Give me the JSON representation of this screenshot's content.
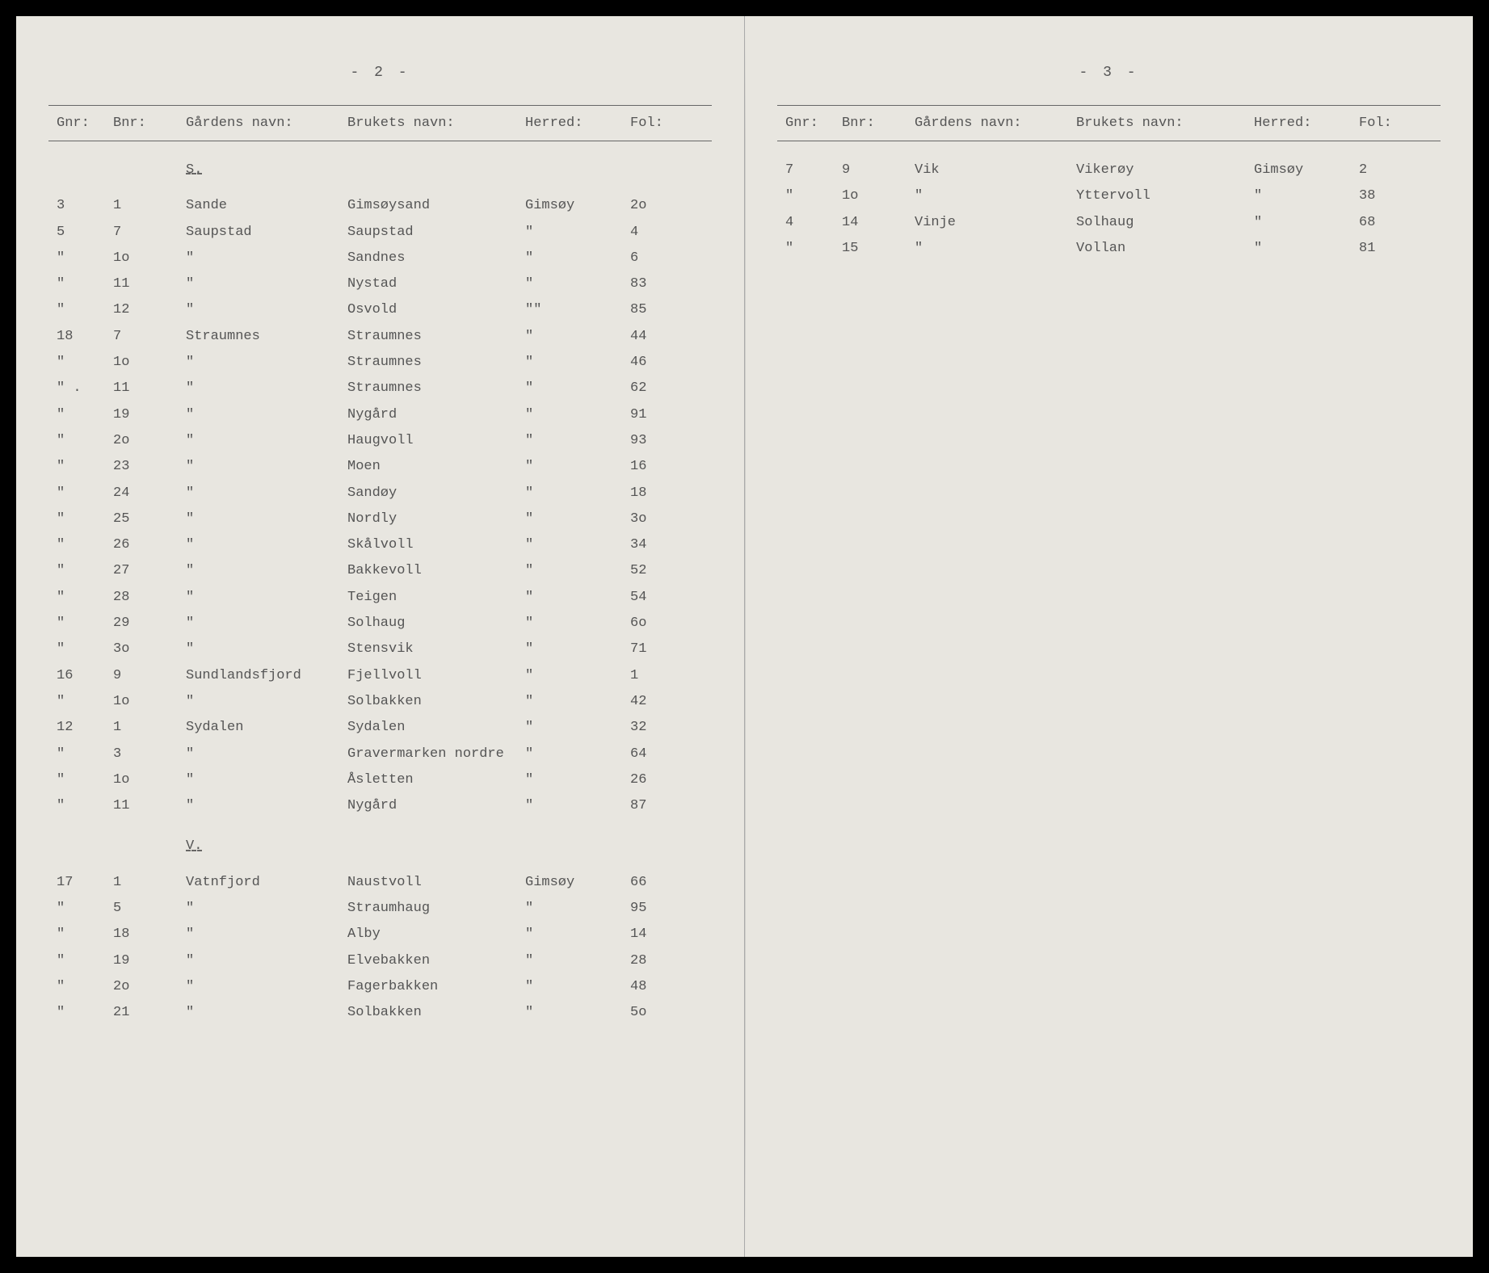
{
  "pages": {
    "left": {
      "pageNumber": "- 2 -",
      "headers": {
        "gnr": "Gnr:",
        "bnr": "Bnr:",
        "gardens": "Gårdens navn:",
        "brukets": "Brukets navn:",
        "herred": "Herred:",
        "fol": "Fol:"
      },
      "sections": [
        {
          "letter": "S.",
          "rows": [
            {
              "gnr": "3",
              "bnr": "1",
              "gardens": "Sande",
              "brukets": "Gimsøysand",
              "herred": "Gimsøy",
              "fol": "2o"
            },
            {
              "gnr": "5",
              "bnr": "7",
              "gardens": "Saupstad",
              "brukets": "Saupstad",
              "herred": "\"",
              "fol": "4"
            },
            {
              "gnr": "\"",
              "bnr": "1o",
              "gardens": "\"",
              "brukets": "Sandnes",
              "herred": "\"",
              "fol": "6"
            },
            {
              "gnr": "\"",
              "bnr": "11",
              "gardens": "\"",
              "brukets": "Nystad",
              "herred": "\"",
              "fol": "83"
            },
            {
              "gnr": "\"",
              "bnr": "12",
              "gardens": "\"",
              "brukets": "Osvold",
              "herred": "\"\"",
              "fol": "85"
            },
            {
              "gnr": "18",
              "bnr": "7",
              "gardens": "Straumnes",
              "brukets": "Straumnes",
              "herred": "\"",
              "fol": "44"
            },
            {
              "gnr": "\"",
              "bnr": "1o",
              "gardens": "\"",
              "brukets": "Straumnes",
              "herred": "\"",
              "fol": "46"
            },
            {
              "gnr": "\" .",
              "bnr": "11",
              "gardens": "\"",
              "brukets": "Straumnes",
              "herred": "\"",
              "fol": "62"
            },
            {
              "gnr": "\"",
              "bnr": "19",
              "gardens": "\"",
              "brukets": "Nygård",
              "herred": "\"",
              "fol": "91"
            },
            {
              "gnr": "\"",
              "bnr": "2o",
              "gardens": "\"",
              "brukets": "Haugvoll",
              "herred": "\"",
              "fol": "93"
            },
            {
              "gnr": "\"",
              "bnr": "23",
              "gardens": "\"",
              "brukets": "Moen",
              "herred": "\"",
              "fol": "16"
            },
            {
              "gnr": "\"",
              "bnr": "24",
              "gardens": "\"",
              "brukets": "Sandøy",
              "herred": "\"",
              "fol": "18"
            },
            {
              "gnr": "\"",
              "bnr": "25",
              "gardens": "\"",
              "brukets": "Nordly",
              "herred": "\"",
              "fol": "3o"
            },
            {
              "gnr": "\"",
              "bnr": "26",
              "gardens": "\"",
              "brukets": "Skålvoll",
              "herred": "\"",
              "fol": "34"
            },
            {
              "gnr": "\"",
              "bnr": "27",
              "gardens": "\"",
              "brukets": "Bakkevoll",
              "herred": "\"",
              "fol": "52"
            },
            {
              "gnr": "\"",
              "bnr": "28",
              "gardens": "\"",
              "brukets": "Teigen",
              "herred": "\"",
              "fol": "54"
            },
            {
              "gnr": "\"",
              "bnr": "29",
              "gardens": "\"",
              "brukets": "Solhaug",
              "herred": "\"",
              "fol": "6o"
            },
            {
              "gnr": "\"",
              "bnr": "3o",
              "gardens": "\"",
              "brukets": "Stensvik",
              "herred": "\"",
              "fol": "71"
            },
            {
              "gnr": "16",
              "bnr": "9",
              "gardens": "Sundlandsfjord",
              "brukets": "Fjellvoll",
              "herred": "\"",
              "fol": "1"
            },
            {
              "gnr": "\"",
              "bnr": "1o",
              "gardens": "\"",
              "brukets": "Solbakken",
              "herred": "\"",
              "fol": "42"
            },
            {
              "gnr": "12",
              "bnr": "1",
              "gardens": "Sydalen",
              "brukets": "Sydalen",
              "herred": "\"",
              "fol": "32"
            },
            {
              "gnr": "\"",
              "bnr": "3",
              "gardens": "\"",
              "brukets": "Gravermarken nordre",
              "herred": "\"",
              "fol": "64"
            },
            {
              "gnr": "\"",
              "bnr": "1o",
              "gardens": "\"",
              "brukets": "Åsletten",
              "herred": "\"",
              "fol": "26"
            },
            {
              "gnr": "\"",
              "bnr": "11",
              "gardens": "\"",
              "brukets": "Nygård",
              "herred": "\"",
              "fol": "87"
            }
          ]
        },
        {
          "letter": "V.",
          "rows": [
            {
              "gnr": "17",
              "bnr": "1",
              "gardens": "Vatnfjord",
              "brukets": "Naustvoll",
              "herred": "Gimsøy",
              "fol": "66"
            },
            {
              "gnr": "\"",
              "bnr": "5",
              "gardens": "\"",
              "brukets": "Straumhaug",
              "herred": "\"",
              "fol": "95"
            },
            {
              "gnr": "\"",
              "bnr": "18",
              "gardens": "\"",
              "brukets": "Alby",
              "herred": "\"",
              "fol": "14"
            },
            {
              "gnr": "\"",
              "bnr": "19",
              "gardens": "\"",
              "brukets": "Elvebakken",
              "herred": "\"",
              "fol": "28"
            },
            {
              "gnr": "\"",
              "bnr": "2o",
              "gardens": "\"",
              "brukets": "Fagerbakken",
              "herred": "\"",
              "fol": "48"
            },
            {
              "gnr": "\"",
              "bnr": "21",
              "gardens": "\"",
              "brukets": "Solbakken",
              "herred": "\"",
              "fol": "5o"
            }
          ]
        }
      ]
    },
    "right": {
      "pageNumber": "- 3 -",
      "headers": {
        "gnr": "Gnr:",
        "bnr": "Bnr:",
        "gardens": "Gårdens navn:",
        "brukets": "Brukets navn:",
        "herred": "Herred:",
        "fol": "Fol:"
      },
      "sections": [
        {
          "letter": "",
          "rows": [
            {
              "gnr": "7",
              "bnr": "9",
              "gardens": "Vik",
              "brukets": "Vikerøy",
              "herred": "Gimsøy",
              "fol": "2"
            },
            {
              "gnr": "\"",
              "bnr": "1o",
              "gardens": "\"",
              "brukets": "Yttervoll",
              "herred": "\"",
              "fol": "38"
            },
            {
              "gnr": "4",
              "bnr": "14",
              "gardens": "Vinje",
              "brukets": "Solhaug",
              "herred": "\"",
              "fol": "68"
            },
            {
              "gnr": "\"",
              "bnr": "15",
              "gardens": "\"",
              "brukets": "Vollan",
              "herred": "\"",
              "fol": "81"
            }
          ]
        }
      ]
    }
  },
  "styling": {
    "background_color": "#e8e6e0",
    "text_color": "#555555",
    "border_color": "#666666",
    "font_family": "Courier New",
    "font_size": 17,
    "header_font_size": 17,
    "page_number_font_size": 18,
    "line_height": 1.9
  }
}
